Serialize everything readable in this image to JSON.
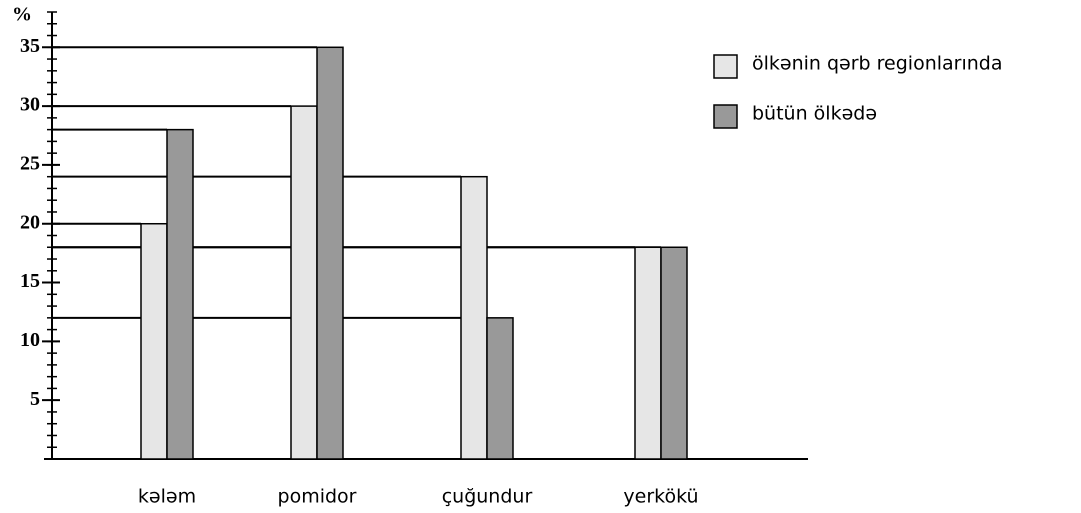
{
  "chart_data": {
    "type": "bar",
    "y_label": "%",
    "categories": [
      "kələm",
      "pomidor",
      "çuğundur",
      "yerkökü"
    ],
    "series": [
      {
        "name": "ölkənin qərb regionlarında",
        "color": "#e6e6e6",
        "values": [
          20,
          30,
          24,
          18
        ]
      },
      {
        "name": "bütün ölkədə",
        "color": "#999999",
        "values": [
          28,
          35,
          12,
          18
        ]
      }
    ],
    "ylim": [
      0,
      38
    ],
    "yticks": [
      5,
      10,
      15,
      20,
      25,
      30,
      35
    ],
    "legend": "upper right"
  }
}
